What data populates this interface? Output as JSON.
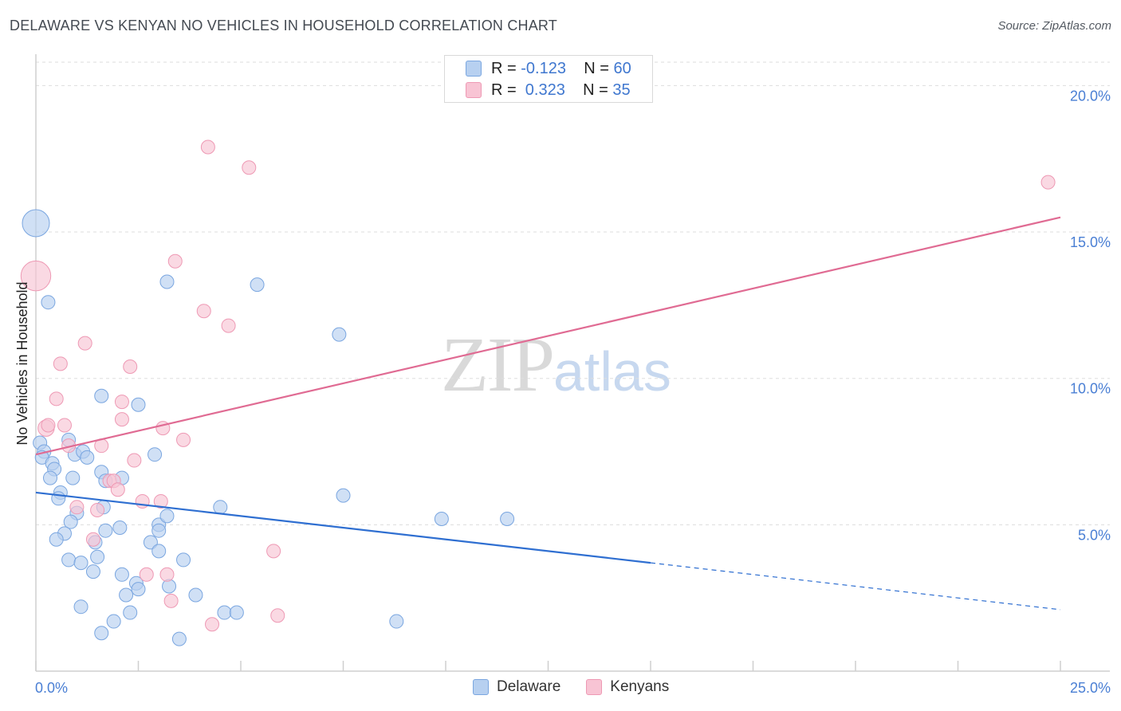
{
  "header": {
    "title": "DELAWARE VS KENYAN NO VEHICLES IN HOUSEHOLD CORRELATION CHART",
    "source": "Source: ZipAtlas.com"
  },
  "watermark": {
    "zip": "ZIP",
    "atlas": "atlas"
  },
  "legend_top": {
    "rows": [
      {
        "r_label": "R = ",
        "r_value": "-0.123",
        "n_label": "N = ",
        "n_value": "60"
      },
      {
        "r_label": "R = ",
        "r_value": " 0.323",
        "n_label": "N = ",
        "n_value": "35"
      }
    ]
  },
  "colors": {
    "delaware_fill": "#b7d0f0",
    "delaware_stroke": "#7aa6e0",
    "delaware_line": "#2f6fd1",
    "kenyan_fill": "#f8c4d4",
    "kenyan_stroke": "#ee99b4",
    "kenyan_line": "#e06b93",
    "grid": "#dddddd",
    "axis": "#cfcfcf"
  },
  "chart_data": {
    "type": "scatter",
    "title": "DELAWARE VS KENYAN NO VEHICLES IN HOUSEHOLD CORRELATION CHART",
    "xlabel": "",
    "ylabel": "No Vehicles in Household",
    "xlim": [
      0,
      25
    ],
    "ylim": [
      0,
      20.8
    ],
    "x_ticks": [
      "0.0%",
      "25.0%"
    ],
    "y_ticks": [
      {
        "value": 5,
        "label": "5.0%"
      },
      {
        "value": 10,
        "label": "10.0%"
      },
      {
        "value": 15,
        "label": "15.0%"
      },
      {
        "value": 20,
        "label": "20.0%"
      }
    ],
    "grid": true,
    "legend_placement": "bottom-center",
    "series": [
      {
        "name": "Delaware",
        "r": -0.123,
        "n": 60,
        "trend": {
          "x0": 0,
          "y0": 6.1,
          "x1": 15,
          "y1": 3.7,
          "dash_to_x": 25,
          "dash_to_y": 2.1
        },
        "points": [
          [
            0.0,
            15.3,
            2.0
          ],
          [
            0.3,
            12.6,
            1.0
          ],
          [
            0.1,
            7.8,
            1.0
          ],
          [
            0.2,
            7.5,
            1.0
          ],
          [
            0.15,
            7.3,
            1.0
          ],
          [
            0.4,
            7.1,
            1.0
          ],
          [
            0.45,
            6.9,
            1.0
          ],
          [
            0.35,
            6.6,
            1.0
          ],
          [
            0.6,
            6.1,
            1.0
          ],
          [
            0.55,
            5.9,
            1.0
          ],
          [
            0.8,
            7.9,
            1.0
          ],
          [
            0.95,
            7.4,
            1.0
          ],
          [
            1.15,
            7.5,
            1.0
          ],
          [
            1.25,
            7.3,
            1.0
          ],
          [
            0.9,
            6.6,
            1.0
          ],
          [
            1.6,
            6.8,
            1.0
          ],
          [
            2.1,
            6.6,
            1.0
          ],
          [
            1.7,
            6.5,
            1.0
          ],
          [
            1.0,
            5.4,
            1.0
          ],
          [
            0.85,
            5.1,
            1.0
          ],
          [
            1.65,
            5.6,
            1.0
          ],
          [
            2.05,
            4.9,
            1.0
          ],
          [
            1.7,
            4.8,
            1.0
          ],
          [
            0.7,
            4.7,
            1.0
          ],
          [
            0.5,
            4.5,
            1.0
          ],
          [
            1.45,
            4.4,
            1.0
          ],
          [
            1.5,
            3.9,
            1.0
          ],
          [
            0.8,
            3.8,
            1.0
          ],
          [
            1.1,
            3.7,
            1.0
          ],
          [
            1.4,
            3.4,
            1.0
          ],
          [
            2.1,
            3.3,
            1.0
          ],
          [
            2.45,
            3.0,
            1.0
          ],
          [
            2.5,
            2.8,
            1.0
          ],
          [
            2.2,
            2.6,
            1.0
          ],
          [
            1.1,
            2.2,
            1.0
          ],
          [
            2.3,
            2.0,
            1.0
          ],
          [
            1.9,
            1.7,
            1.0
          ],
          [
            1.6,
            1.3,
            1.0
          ],
          [
            2.5,
            9.1,
            1.0
          ],
          [
            1.6,
            9.4,
            1.0
          ],
          [
            3.2,
            13.3,
            1.0
          ],
          [
            5.4,
            13.2,
            1.0
          ],
          [
            7.4,
            11.5,
            1.0
          ],
          [
            2.9,
            7.4,
            1.0
          ],
          [
            3.0,
            5.0,
            1.0
          ],
          [
            2.8,
            4.4,
            1.0
          ],
          [
            3.2,
            5.3,
            1.0
          ],
          [
            4.5,
            5.6,
            1.0
          ],
          [
            7.5,
            6.0,
            1.0
          ],
          [
            9.9,
            5.2,
            1.0
          ],
          [
            11.5,
            5.2,
            1.0
          ],
          [
            3.0,
            4.8,
            1.0
          ],
          [
            3.0,
            4.1,
            1.0
          ],
          [
            3.6,
            3.8,
            1.0
          ],
          [
            3.25,
            2.9,
            1.0
          ],
          [
            3.9,
            2.6,
            1.0
          ],
          [
            4.6,
            2.0,
            1.0
          ],
          [
            4.9,
            2.0,
            1.0
          ],
          [
            8.8,
            1.7,
            1.0
          ],
          [
            3.5,
            1.1,
            1.0
          ]
        ]
      },
      {
        "name": "Kenyans",
        "r": 0.323,
        "n": 35,
        "trend": {
          "x0": 0,
          "y0": 7.4,
          "x1": 25,
          "y1": 15.5
        },
        "points": [
          [
            0.0,
            13.5,
            2.2
          ],
          [
            0.25,
            8.3,
            1.2
          ],
          [
            0.3,
            8.4,
            1.0
          ],
          [
            0.6,
            10.5,
            1.0
          ],
          [
            0.5,
            9.3,
            1.0
          ],
          [
            0.7,
            8.4,
            1.0
          ],
          [
            1.2,
            11.2,
            1.0
          ],
          [
            0.8,
            7.7,
            1.0
          ],
          [
            1.6,
            7.7,
            1.0
          ],
          [
            2.3,
            10.4,
            1.0
          ],
          [
            2.1,
            9.2,
            1.0
          ],
          [
            2.1,
            8.6,
            1.0
          ],
          [
            1.8,
            6.5,
            1.0
          ],
          [
            1.9,
            6.5,
            1.0
          ],
          [
            2.0,
            6.2,
            1.0
          ],
          [
            2.4,
            7.2,
            1.0
          ],
          [
            3.1,
            8.3,
            1.0
          ],
          [
            3.6,
            7.9,
            1.0
          ],
          [
            1.0,
            5.6,
            1.0
          ],
          [
            1.5,
            5.5,
            1.0
          ],
          [
            2.6,
            5.8,
            1.0
          ],
          [
            3.05,
            5.8,
            1.0
          ],
          [
            1.4,
            4.5,
            1.0
          ],
          [
            2.7,
            3.3,
            1.0
          ],
          [
            3.3,
            2.4,
            1.0
          ],
          [
            4.1,
            12.3,
            1.0
          ],
          [
            4.7,
            11.8,
            1.0
          ],
          [
            3.4,
            14.0,
            1.0
          ],
          [
            4.2,
            17.9,
            1.0
          ],
          [
            5.2,
            17.2,
            1.0
          ],
          [
            5.8,
            4.1,
            1.0
          ],
          [
            5.9,
            1.9,
            1.0
          ],
          [
            4.3,
            1.6,
            1.0
          ],
          [
            24.7,
            16.7,
            1.0
          ],
          [
            3.2,
            3.3,
            1.0
          ]
        ]
      }
    ]
  }
}
